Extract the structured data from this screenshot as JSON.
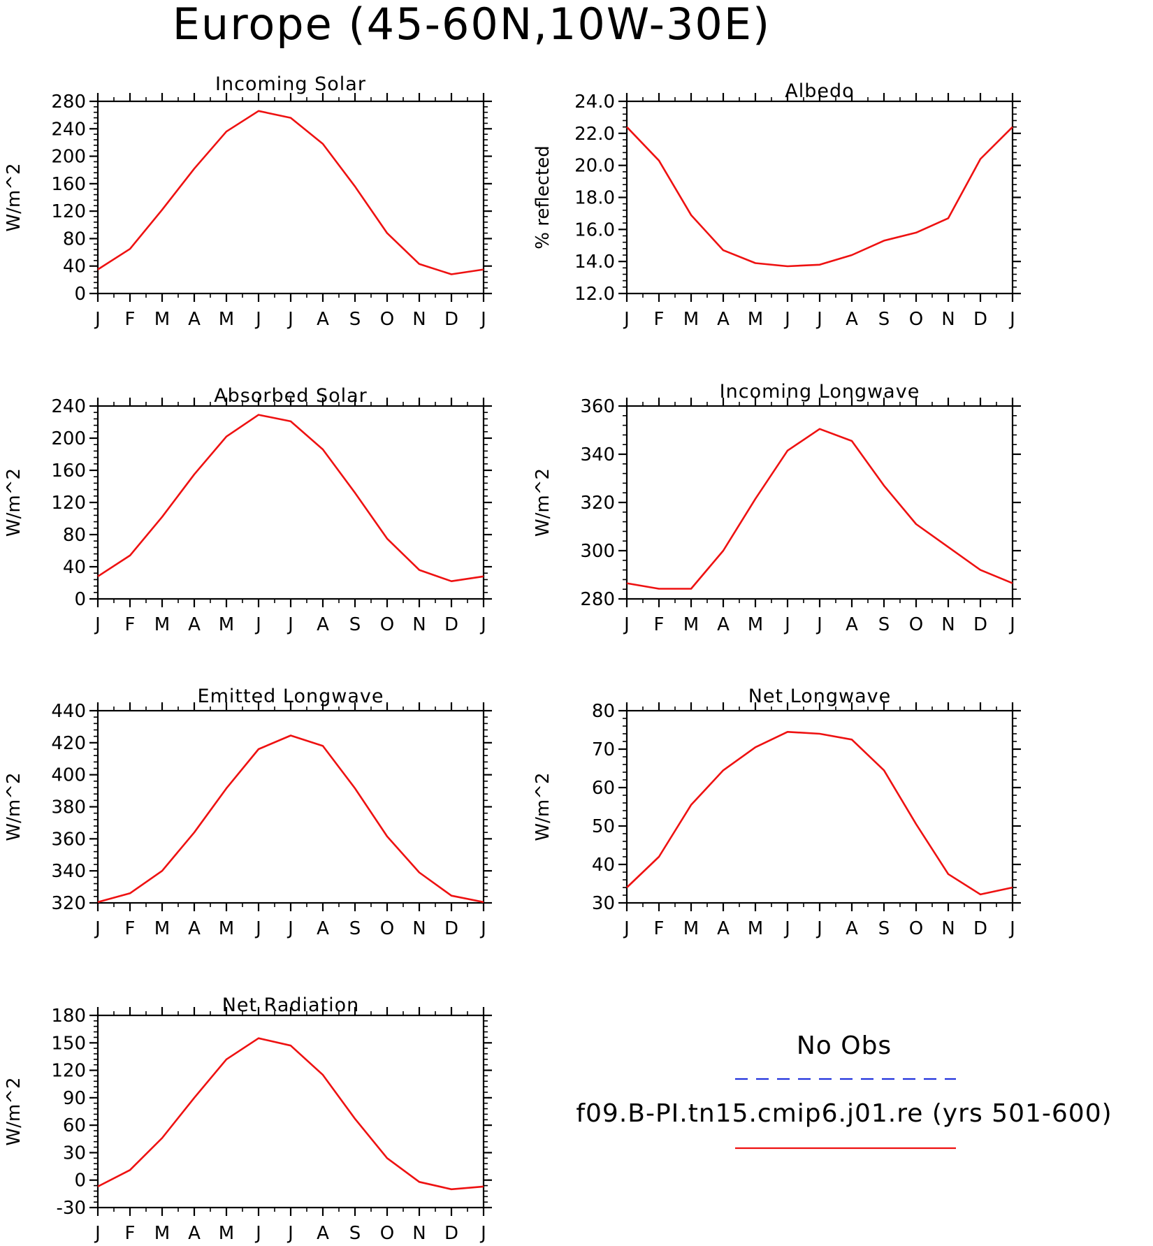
{
  "page_title": "Europe (45-60N,10W-30E)",
  "month_labels": [
    "J",
    "F",
    "M",
    "A",
    "M",
    "J",
    "J",
    "A",
    "S",
    "O",
    "N",
    "D",
    "J"
  ],
  "legend": {
    "obs_label": "No Obs",
    "obs_color": "#2233dd",
    "model_label": "f09.B-PI.tn15.cmip6.j01.re (yrs 501-600)",
    "model_color": "#ee1111"
  },
  "chart_data": [
    {
      "type": "line",
      "title": "Incoming Solar",
      "ylabel": "W/m^2",
      "ylim": [
        0,
        280
      ],
      "yticks": [
        0,
        40,
        80,
        120,
        160,
        200,
        240,
        280
      ],
      "ytick_labels": [
        "0",
        "40",
        "80",
        "120",
        "160",
        "200",
        "240",
        "280"
      ],
      "x": [
        "J",
        "F",
        "M",
        "A",
        "M",
        "J",
        "J",
        "A",
        "S",
        "O",
        "N",
        "D",
        "J"
      ],
      "series": [
        {
          "values": [
            35,
            65,
            122,
            182,
            236,
            266,
            256,
            218,
            156,
            88,
            43,
            28,
            35
          ]
        }
      ]
    },
    {
      "type": "line",
      "title": "Albedo",
      "ylabel": "% reflected",
      "ylim": [
        12.0,
        24.0
      ],
      "yticks": [
        12,
        14,
        16,
        18,
        20,
        22,
        24
      ],
      "ytick_labels": [
        "12.0",
        "14.0",
        "16.0",
        "18.0",
        "20.0",
        "22.0",
        "24.0"
      ],
      "x": [
        "J",
        "F",
        "M",
        "A",
        "M",
        "J",
        "J",
        "A",
        "S",
        "O",
        "N",
        "D",
        "J"
      ],
      "series": [
        {
          "values": [
            22.4,
            20.3,
            16.9,
            14.7,
            13.9,
            13.7,
            13.8,
            14.4,
            15.3,
            15.8,
            16.7,
            20.4,
            22.4
          ]
        }
      ]
    },
    {
      "type": "line",
      "title": "Absorbed Solar",
      "ylabel": "W/m^2",
      "ylim": [
        0,
        240
      ],
      "yticks": [
        0,
        40,
        80,
        120,
        160,
        200,
        240
      ],
      "ytick_labels": [
        "0",
        "40",
        "80",
        "120",
        "160",
        "200",
        "240"
      ],
      "x": [
        "J",
        "F",
        "M",
        "A",
        "M",
        "J",
        "J",
        "A",
        "S",
        "O",
        "N",
        "D",
        "J"
      ],
      "series": [
        {
          "values": [
            28,
            54,
            102,
            155,
            202,
            229,
            221,
            186,
            132,
            75,
            36,
            22,
            28
          ]
        }
      ]
    },
    {
      "type": "line",
      "title": "Incoming Longwave",
      "ylabel": "W/m^2",
      "ylim": [
        280,
        360
      ],
      "yticks": [
        280,
        300,
        320,
        340,
        360
      ],
      "ytick_labels": [
        "280",
        "300",
        "320",
        "340",
        "360"
      ],
      "x": [
        "J",
        "F",
        "M",
        "A",
        "M",
        "J",
        "J",
        "A",
        "S",
        "O",
        "N",
        "D",
        "J"
      ],
      "series": [
        {
          "values": [
            286.5,
            284.2,
            284.2,
            300,
            321.5,
            341.5,
            350.5,
            345.5,
            327,
            311,
            301.5,
            292,
            286.5
          ]
        }
      ]
    },
    {
      "type": "line",
      "title": "Emitted Longwave",
      "ylabel": "W/m^2",
      "ylim": [
        320,
        440
      ],
      "yticks": [
        320,
        340,
        360,
        380,
        400,
        420,
        440
      ],
      "ytick_labels": [
        "320",
        "340",
        "360",
        "380",
        "400",
        "420",
        "440"
      ],
      "x": [
        "J",
        "F",
        "M",
        "A",
        "M",
        "J",
        "J",
        "A",
        "S",
        "O",
        "N",
        "D",
        "J"
      ],
      "series": [
        {
          "values": [
            320.5,
            326,
            340,
            364,
            391.5,
            416,
            424.5,
            418,
            391.5,
            361.5,
            339,
            324.5,
            320.5
          ]
        }
      ]
    },
    {
      "type": "line",
      "title": "Net Longwave",
      "ylabel": "W/m^2",
      "ylim": [
        30,
        80
      ],
      "yticks": [
        30,
        40,
        50,
        60,
        70,
        80
      ],
      "ytick_labels": [
        "30",
        "40",
        "50",
        "60",
        "70",
        "80"
      ],
      "x": [
        "J",
        "F",
        "M",
        "A",
        "M",
        "J",
        "J",
        "A",
        "S",
        "O",
        "N",
        "D",
        "J"
      ],
      "series": [
        {
          "values": [
            34,
            42,
            55.5,
            64.5,
            70.5,
            74.5,
            74,
            72.5,
            64.5,
            50.5,
            37.5,
            32.2,
            34
          ]
        }
      ]
    },
    {
      "type": "line",
      "title": "Net Radiation",
      "ylabel": "W/m^2",
      "ylim": [
        -30,
        180
      ],
      "yticks": [
        -30,
        0,
        30,
        60,
        90,
        120,
        150,
        180
      ],
      "ytick_labels": [
        "-30",
        "0",
        "30",
        "60",
        "90",
        "120",
        "150",
        "180"
      ],
      "x": [
        "J",
        "F",
        "M",
        "A",
        "M",
        "J",
        "J",
        "A",
        "S",
        "O",
        "N",
        "D",
        "J"
      ],
      "series": [
        {
          "values": [
            -7,
            11,
            46,
            90,
            132,
            155,
            147,
            115,
            67,
            24,
            -2,
            -10,
            -7
          ]
        }
      ]
    }
  ]
}
